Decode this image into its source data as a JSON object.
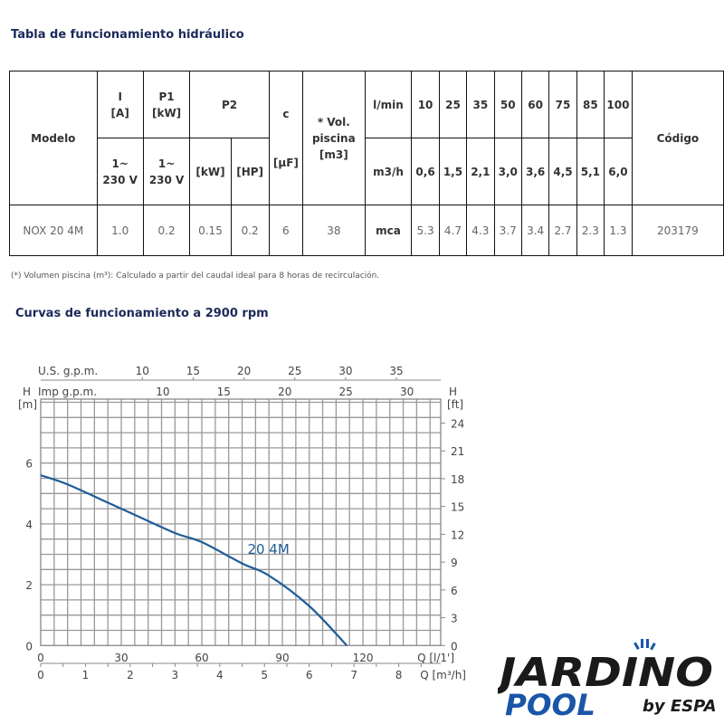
{
  "table_title": "Tabla de funcionamiento hidráulico",
  "table": {
    "modelo": "Modelo",
    "i": "I",
    "i_unit": "[A]",
    "p1": "P1",
    "p1_unit": "[kW]",
    "p2": "P2",
    "c": "c",
    "c_unit": "[µF]",
    "vol": "* Vol. piscina [m3]",
    "phase1": "1~",
    "volt1": "230 V",
    "phase2": "1~",
    "volt2": "230 V",
    "p2_kw": "[kW]",
    "p2_hp": "[HP]",
    "lmin_label": "l/min",
    "m3h_label": "m3/h",
    "mca_label": "mca",
    "codigo": "Código",
    "lmin": [
      "10",
      "25",
      "35",
      "50",
      "60",
      "75",
      "85",
      "100"
    ],
    "m3h": [
      "0,6",
      "1,5",
      "2,1",
      "3,0",
      "3,6",
      "4,5",
      "5,1",
      "6,0"
    ],
    "row": {
      "model": "NOX 20 4M",
      "i": "1.0",
      "p1": "0.2",
      "p2_kw": "0.15",
      "p2_hp": "0.2",
      "c": "6",
      "vol": "38",
      "code": "203179"
    },
    "mca": [
      "5.3",
      "4.7",
      "4.3",
      "3.7",
      "3.4",
      "2.7",
      "2.3",
      "1.3"
    ]
  },
  "note": "(*) Volumen piscina (m³): Calculado a partir del caudal ideal para 8 horas de recirculación.",
  "chart_title": "Curvas de funcionamiento a 2900 rpm",
  "chart_data": {
    "type": "line",
    "x_unit": "Q [l/1']",
    "x2_unit": "Q [m³/h]",
    "x_top1": "U.S. g.p.m.",
    "x_top2": "Imp g.p.m.",
    "y_label": "H",
    "y_unit": "[m]",
    "y2_label": "H",
    "y2_unit": "[ft]",
    "xlim": [
      0,
      150
    ],
    "ylim": [
      0,
      8
    ],
    "x_ticks": [
      0,
      30,
      60,
      90,
      120
    ],
    "x2_ticks": [
      0,
      1,
      2,
      3,
      4,
      5,
      6,
      7,
      8
    ],
    "us_gpm_ticks": [
      10,
      15,
      20,
      25,
      30,
      35
    ],
    "imp_gpm_ticks": [
      10,
      15,
      20,
      25,
      30
    ],
    "y_ticks": [
      0,
      2,
      4,
      6
    ],
    "y2_ticks": [
      0,
      3,
      6,
      9,
      12,
      15,
      18,
      21,
      24
    ],
    "grid": true,
    "series": [
      {
        "name": "20 4M",
        "color": "#1f5d99",
        "x": [
          0,
          10,
          25,
          35,
          50,
          60,
          75,
          85,
          100,
          114
        ],
        "y": [
          5.6,
          5.3,
          4.7,
          4.3,
          3.7,
          3.4,
          2.7,
          2.3,
          1.3,
          0
        ]
      }
    ]
  },
  "logo": {
    "line1": "JARDINO",
    "line2": "POOL",
    "by": "by ESPA",
    "dark": "#1a1a1a",
    "blue": "#1a56a8"
  }
}
